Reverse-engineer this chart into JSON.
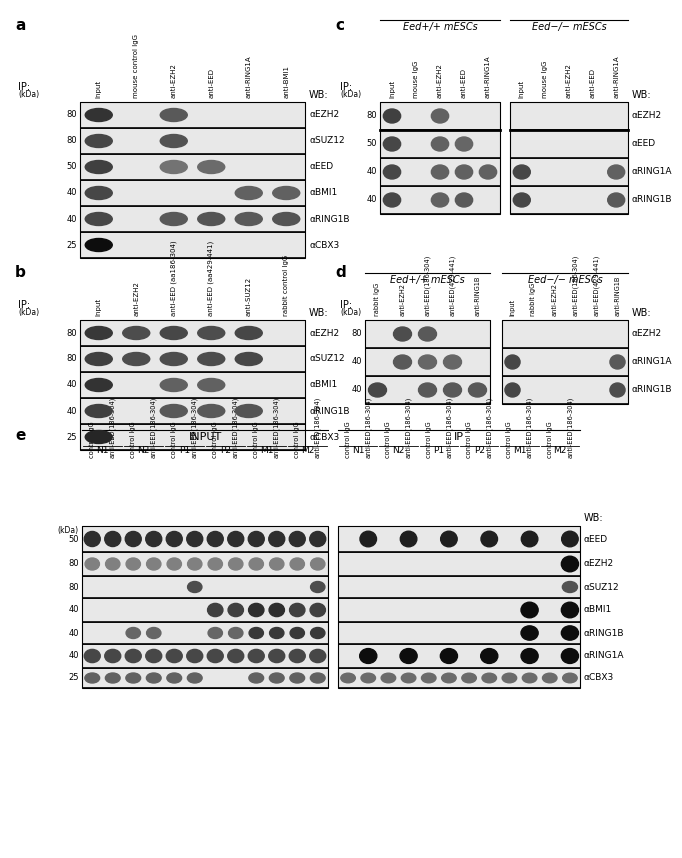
{
  "figure_width": 6.5,
  "figure_height": 8.38,
  "bg_color": "#ffffff",
  "panel_a": {
    "label": "a",
    "columns": [
      "Input",
      "mouse control IgG",
      "anti-EZH2",
      "anti-EED",
      "anti-RING1A",
      "anti-BMI1"
    ],
    "wb_labels": [
      "αEZH2",
      "αSUZ12",
      "αEED",
      "αBMI1",
      "αRING1B",
      "αCBX3"
    ],
    "kda_marks": [
      "80",
      "80",
      "50",
      "40",
      "40",
      "25"
    ]
  },
  "panel_b": {
    "label": "b",
    "columns": [
      "Input",
      "anti-EZH2",
      "anti-EED (aa186-304)",
      "anti-EED (aa429-441)",
      "anti-SUZ12",
      "rabbit control IgG"
    ],
    "wb_labels": [
      "αEZH2",
      "αSUZ12",
      "αBMI1",
      "αRING1B",
      "αCBX3"
    ],
    "kda_marks": [
      "80",
      "80",
      "40",
      "40",
      "25"
    ]
  },
  "panel_c": {
    "label": "c",
    "title1": "Eed+/+ mESCs",
    "title2": "Eed−/− mESCs",
    "columns1": [
      "Input",
      "mouse IgG",
      "anti-EZH2",
      "anti-EED",
      "anti-RING1A"
    ],
    "columns2": [
      "Input",
      "mouse IgG",
      "anti-EZH2",
      "anti-EED",
      "anti-RING1A"
    ],
    "wb_labels": [
      "αEZH2",
      "αEED",
      "αRING1A",
      "αRING1B"
    ],
    "kda_marks": [
      "80",
      "50",
      "40",
      "40"
    ]
  },
  "panel_d": {
    "label": "d",
    "title1": "Eed+/+ mESCs",
    "title2": "Eed−/− mESCs",
    "columns1": [
      "rabbit IgG",
      "anti-EZH2",
      "anti-EED(186-304)",
      "anti-EED(429-441)",
      "anti-RING1B"
    ],
    "columns2": [
      "Input",
      "rabbit IgG",
      "anti-EZH2",
      "anti-EED(186-304)",
      "anti-EED(429-441)",
      "anti-RING1B"
    ],
    "wb_labels": [
      "αEZH2",
      "αRING1A",
      "αRING1B"
    ],
    "kda_marks": [
      "80",
      "40",
      "40"
    ]
  },
  "panel_e": {
    "label": "e",
    "groups": [
      "N1",
      "N2",
      "P1",
      "P2",
      "M1",
      "M2"
    ],
    "col_labels": [
      "control IgG",
      "anti-EED(186-304)"
    ],
    "wb_labels": [
      "αEED",
      "αEZH2",
      "αSUZ12",
      "αBMI1",
      "αRING1B",
      "αRING1A",
      "αCBX3"
    ],
    "kda_marks": [
      "50",
      "80",
      "80",
      "40",
      "40",
      "40",
      "25"
    ]
  }
}
